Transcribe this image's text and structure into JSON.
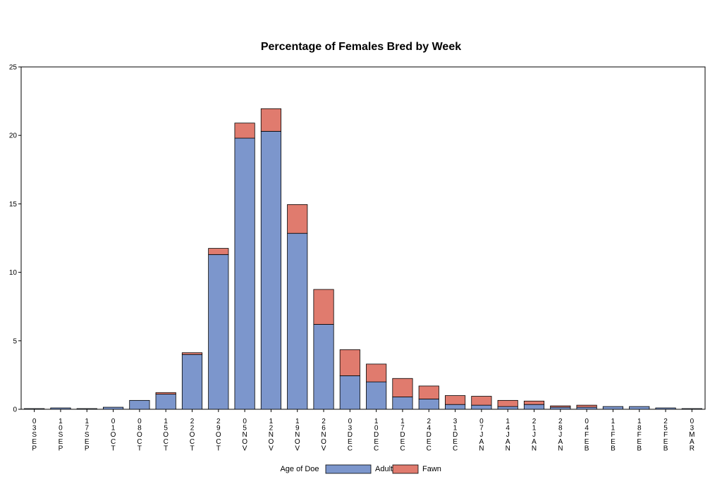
{
  "chart_data": {
    "type": "bar",
    "stacked": true,
    "title": "Percentage of Females Bred by Week",
    "xlabel": "",
    "ylabel": "",
    "ylim": [
      0,
      25
    ],
    "yticks": [
      0,
      5,
      10,
      15,
      20,
      25
    ],
    "categories": [
      "03SEP",
      "10SEP",
      "17SEP",
      "01OCT",
      "08OCT",
      "15OCT",
      "22OCT",
      "29OCT",
      "05NOV",
      "12NOV",
      "19NOV",
      "26NOV",
      "03DEC",
      "10DEC",
      "17DEC",
      "24DEC",
      "31DEC",
      "07JAN",
      "14JAN",
      "21JAN",
      "28JAN",
      "04FEB",
      "11FEB",
      "18FEB",
      "25FEB",
      "03MAR"
    ],
    "series": [
      {
        "name": "Adult",
        "color": "#7c96cc",
        "values": [
          0.05,
          0.1,
          0.05,
          0.15,
          0.65,
          1.1,
          4.0,
          11.3,
          19.8,
          20.3,
          12.85,
          6.2,
          2.45,
          2.0,
          0.9,
          0.75,
          0.35,
          0.3,
          0.2,
          0.35,
          0.15,
          0.15,
          0.2,
          0.2,
          0.1,
          0.05
        ]
      },
      {
        "name": "Fawn",
        "color": "#e07b6e",
        "values": [
          0.0,
          0.0,
          0.0,
          0.0,
          0.0,
          0.12,
          0.13,
          0.45,
          1.1,
          1.65,
          2.1,
          2.55,
          1.9,
          1.3,
          1.35,
          0.95,
          0.65,
          0.65,
          0.45,
          0.25,
          0.1,
          0.15,
          0.0,
          0.0,
          0.0,
          0.0
        ]
      }
    ],
    "legend": {
      "title": "Age of Doe",
      "placement": "bottom-center"
    },
    "grid": false
  }
}
